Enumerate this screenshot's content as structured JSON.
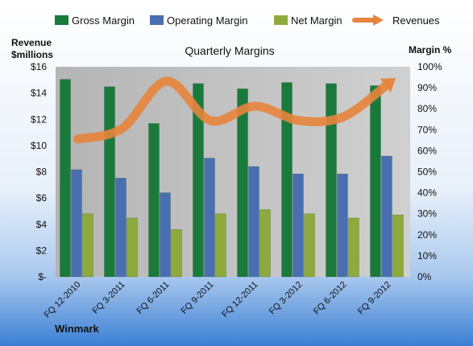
{
  "brand": "Winmark",
  "chart_data": {
    "type": "bar",
    "title": "Quarterly Margins",
    "left_axis": {
      "title_line1": "Revenue",
      "title_line2": "$millions",
      "ylim": [
        0,
        16
      ],
      "ticks": [
        "$-",
        "$2",
        "$4",
        "$6",
        "$8",
        "$10",
        "$12",
        "$14",
        "$16"
      ]
    },
    "right_axis": {
      "title": "Margin %",
      "ylim": [
        0,
        100
      ],
      "ticks": [
        "0%",
        "10%",
        "20%",
        "30%",
        "40%",
        "50%",
        "60%",
        "70%",
        "80%",
        "90%",
        "100%"
      ]
    },
    "categories": [
      "FQ 12-2010",
      "FQ 3-2011",
      "FQ 6-2011",
      "FQ 9-2011",
      "FQ 12-2011",
      "FQ 3-2012",
      "FQ 6-2012",
      "FQ 9-2012"
    ],
    "series": [
      {
        "name": "Gross Margin",
        "axis": "right",
        "kind": "bar",
        "color": "#1a7a3c",
        "values": [
          94,
          90.5,
          73,
          92,
          89.5,
          92.5,
          92,
          91
        ]
      },
      {
        "name": "Operating Margin",
        "axis": "right",
        "kind": "bar",
        "color": "#4a6fb0",
        "values": [
          51,
          47,
          40,
          56.5,
          52.5,
          49,
          49,
          57.5
        ]
      },
      {
        "name": "Net Margin",
        "axis": "right",
        "kind": "bar",
        "color": "#8faa3c",
        "values": [
          30,
          28,
          22.5,
          30,
          32,
          30,
          28,
          29.5
        ]
      },
      {
        "name": "Revenues",
        "axis": "left",
        "kind": "line",
        "color": "#e8843c",
        "values": [
          10.5,
          11.3,
          14.9,
          11.9,
          13.0,
          11.9,
          12.2,
          14.7
        ]
      }
    ],
    "legend_position": "top",
    "grid": false
  }
}
